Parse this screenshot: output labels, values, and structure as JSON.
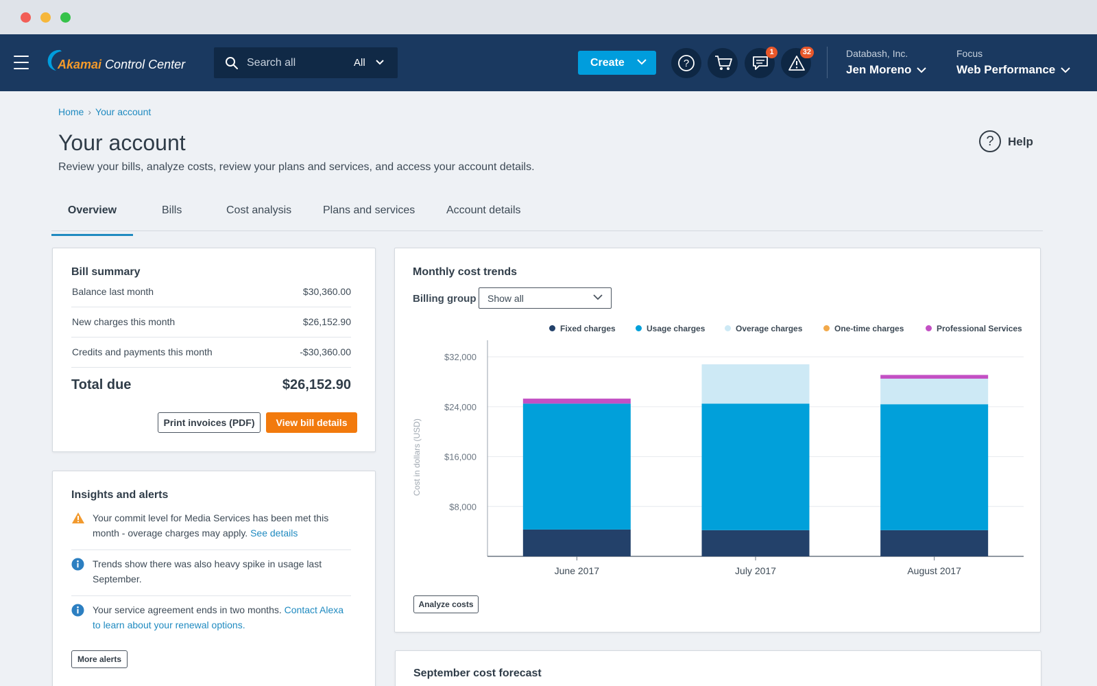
{
  "header": {
    "app_brand": "Akamai",
    "app_product": "Control Center",
    "search_placeholder": "Search all",
    "search_scope": "All",
    "create_label": "Create",
    "messages_badge": "1",
    "alerts_badge": "32",
    "org_name": "Databash, Inc.",
    "user_name": "Jen Moreno",
    "focus_label": "Focus",
    "focus_value": "Web Performance"
  },
  "breadcrumb": {
    "home": "Home",
    "current": "Your account"
  },
  "page": {
    "title": "Your account",
    "subtitle": "Review your bills, analyze costs, review your plans and services, and access your account details.",
    "help_label": "Help"
  },
  "tabs": [
    "Overview",
    "Bills",
    "Cost analysis",
    "Plans and services",
    "Account details"
  ],
  "bill_summary": {
    "title": "Bill summary",
    "rows": [
      {
        "label": "Balance last month",
        "value": "$30,360.00"
      },
      {
        "label": "New charges this month",
        "value": "$26,152.90"
      },
      {
        "label": "Credits and payments this month",
        "value": "-$30,360.00"
      }
    ],
    "total_label": "Total due",
    "total_value": "$26,152.90",
    "print_label": "Print invoices (PDF)",
    "view_label": "View bill details"
  },
  "insights": {
    "title": "Insights and alerts",
    "alerts": [
      {
        "type": "warning",
        "text": "Your commit level for Media Services has been met this month - overage charges may apply. ",
        "link": "See details"
      },
      {
        "type": "info",
        "text": "Trends show there was also heavy spike in usage last September.",
        "link": ""
      },
      {
        "type": "info",
        "text": "Your service agreement ends in two months. ",
        "link": "Contact Alexa to learn about your renewal options."
      }
    ],
    "more_label": "More alerts"
  },
  "trends": {
    "title": "Monthly cost trends",
    "billing_group_label": "Billing group",
    "billing_group_value": "Show all",
    "analyze_label": "Analyze costs"
  },
  "forecast": {
    "title": "September cost forecast"
  },
  "colors": {
    "header_bg": "#1a3960",
    "accent": "#009ddd",
    "orange": "#f27a0d",
    "fixed": "#23416a",
    "usage": "#01a0da",
    "overage": "#cde9f5",
    "onetime": "#f2a94a",
    "professional": "#c350c4"
  },
  "chart_data": {
    "type": "bar",
    "stacked": true,
    "categories": [
      "June 2017",
      "July 2017",
      "August 2017"
    ],
    "series": [
      {
        "name": "Fixed charges",
        "color": "#23416a",
        "values": [
          4300,
          4200,
          4200
        ]
      },
      {
        "name": "Usage charges",
        "color": "#01a0da",
        "values": [
          20200,
          20300,
          20200
        ]
      },
      {
        "name": "Overage charges",
        "color": "#cde9f5",
        "values": [
          0,
          6300,
          4100
        ]
      },
      {
        "name": "One-time charges",
        "color": "#f2a94a",
        "values": [
          0,
          0,
          0
        ]
      },
      {
        "name": "Professional Services",
        "color": "#c350c4",
        "values": [
          800,
          0,
          600
        ]
      }
    ],
    "yticks": [
      "$8,000",
      "$16,000",
      "$24,000",
      "$32,000"
    ],
    "ytick_values": [
      8000,
      16000,
      24000,
      32000
    ],
    "ylim": [
      0,
      34000
    ],
    "ylabel": "Cost in dollars (USD)",
    "xlabel": "",
    "grid": true,
    "legend": "top-right"
  }
}
